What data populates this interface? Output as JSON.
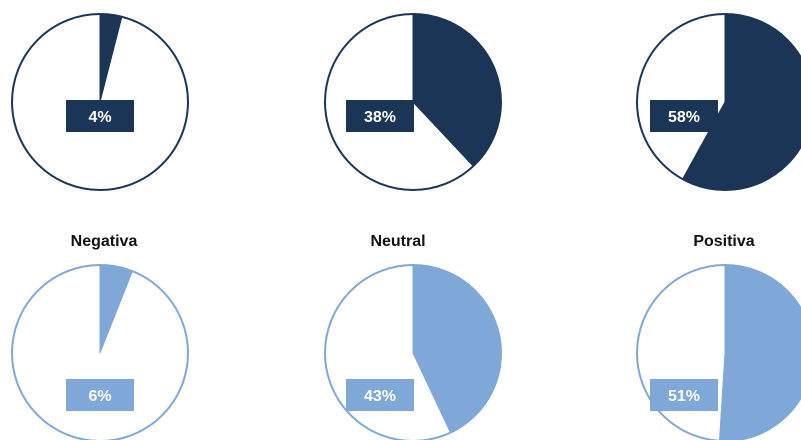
{
  "chart_data": {
    "type": "pie",
    "categories": [
      "Negativa",
      "Neutral",
      "Positiva"
    ],
    "series": [
      {
        "values": [
          4,
          38,
          58
        ],
        "color": "#1b3556"
      },
      {
        "values": [
          6,
          43,
          51
        ],
        "color": "#7fa8d9"
      }
    ],
    "labels": {
      "series_0": [
        "4%",
        "38%",
        "58%"
      ],
      "series_1": [
        "6%",
        "43%",
        "51%"
      ]
    }
  }
}
